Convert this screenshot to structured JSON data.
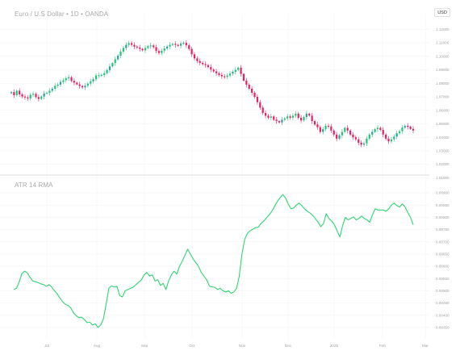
{
  "header": {
    "title": "Euro / U.S Dollar • 1D • OANDA",
    "currency": "USD",
    "indicator_label": "ATR 14 RMA"
  },
  "colors": {
    "up": "#26a69a",
    "up_bright": "#22c47a",
    "down": "#e91e63",
    "atr_line": "#2ed573",
    "grid": "#f0f0f0",
    "separator": "#dcdcdc"
  },
  "chart_data": [
    {
      "type": "candlestick",
      "title": "Euro / U.S Dollar • 1D • OANDA",
      "ylabel": "",
      "y_ticks": [
        "1.12000",
        "1.11000",
        "1.10000",
        "1.09000",
        "1.08000",
        "1.07000",
        "1.06000",
        "1.05000",
        "1.04000",
        "1.03000",
        "1.02000",
        "1.01000"
      ],
      "ylim": [
        1.015,
        1.125
      ],
      "x_ticks": [
        "Jul",
        "Aug",
        "Sep",
        "Oct",
        "Nov",
        "Dec",
        "2025",
        "Feb",
        "Mar"
      ],
      "closes": [
        1.0735,
        1.0712,
        1.0745,
        1.0718,
        1.0702,
        1.0695,
        1.0688,
        1.0715,
        1.0722,
        1.0698,
        1.0685,
        1.0702,
        1.0724,
        1.073,
        1.0745,
        1.076,
        1.0782,
        1.079,
        1.081,
        1.0822,
        1.0838,
        1.0845,
        1.0818,
        1.0805,
        1.0792,
        1.078,
        1.077,
        1.0782,
        1.0798,
        1.0815,
        1.083,
        1.0858,
        1.086,
        1.0862,
        1.0875,
        1.0898,
        1.0925,
        1.095,
        1.0978,
        1.1005,
        1.1035,
        1.1062,
        1.1085,
        1.1098,
        1.1085,
        1.1072,
        1.1065,
        1.1055,
        1.1045,
        1.1062,
        1.1075,
        1.108,
        1.1068,
        1.104,
        1.1025,
        1.1042,
        1.1058,
        1.1072,
        1.1085,
        1.1092,
        1.1085,
        1.1078,
        1.1095,
        1.11,
        1.1082,
        1.1055,
        1.1015,
        1.0985,
        1.0965,
        1.0952,
        1.0942,
        1.0935,
        1.092,
        1.0902,
        1.0888,
        1.0875,
        1.0862,
        1.0852,
        1.0848,
        1.0858,
        1.0872,
        1.0885,
        1.09,
        1.0915,
        1.087,
        1.082,
        1.079,
        1.076,
        1.073,
        1.07,
        1.066,
        1.062,
        1.058,
        1.056,
        1.0545,
        1.0555,
        1.053,
        1.052,
        1.051,
        1.053,
        1.054,
        1.0555,
        1.0545,
        1.056,
        1.0575,
        1.0545,
        1.0525,
        1.055,
        1.0575,
        1.056,
        1.052,
        1.0495,
        1.0475,
        1.044,
        1.046,
        1.0485,
        1.048,
        1.045,
        1.042,
        1.039,
        1.0415,
        1.044,
        1.047,
        1.045,
        1.042,
        1.04,
        1.0385,
        1.036,
        1.0345,
        1.0355,
        1.039,
        1.042,
        1.044,
        1.046,
        1.047,
        1.0455,
        1.042,
        1.039,
        1.037,
        1.0385,
        1.0405,
        1.043,
        1.0445,
        1.0472,
        1.0485,
        1.0478,
        1.0462,
        1.045
      ],
      "series": [
        {
          "name": "Euro / U.S Dollar",
          "kind": "candles"
        }
      ]
    },
    {
      "type": "line",
      "title": "ATR 14 RMA",
      "ylabel": "",
      "y_ticks": [
        "0.00900",
        "0.00850",
        "0.00800",
        "0.00750",
        "0.00700",
        "0.00650",
        "0.00600",
        "0.00550",
        "0.00500",
        "0.00450",
        "0.00400",
        "0.00350"
      ],
      "ylim": [
        0.0033,
        0.0092
      ],
      "x_ticks": [
        "Jul",
        "Aug",
        "Sep",
        "Oct",
        "Nov",
        "Dec",
        "2025",
        "Feb",
        "Mar"
      ],
      "series": [
        {
          "name": "ATR 14 RMA",
          "values": [
            0.00505,
            0.0051,
            0.00535,
            0.0057,
            0.0058,
            0.00573,
            0.00555,
            0.0054,
            0.00537,
            0.00533,
            0.00528,
            0.00525,
            0.00518,
            0.00525,
            0.00515,
            0.005,
            0.00488,
            0.0047,
            0.00455,
            0.00445,
            0.0044,
            0.0043,
            0.0041,
            0.00398,
            0.0039,
            0.00392,
            0.00382,
            0.0037,
            0.00372,
            0.0036,
            0.00365,
            0.0035,
            0.0036,
            0.00385,
            0.00445,
            0.0051,
            0.0052,
            0.00515,
            0.00518,
            0.0048,
            0.00475,
            0.005,
            0.00505,
            0.0051,
            0.00515,
            0.00525,
            0.00535,
            0.00545,
            0.00565,
            0.00575,
            0.0056,
            0.00565,
            0.0054,
            0.00545,
            0.00522,
            0.0053,
            0.00505,
            0.0054,
            0.00565,
            0.0058,
            0.00568,
            0.006,
            0.0062,
            0.00645,
            0.0067,
            0.0065,
            0.0063,
            0.00615,
            0.006,
            0.00575,
            0.0056,
            0.00545,
            0.0052,
            0.00515,
            0.00515,
            0.00505,
            0.0051,
            0.005,
            0.00495,
            0.005,
            0.0049,
            0.00495,
            0.0051,
            0.0056,
            0.0065,
            0.0071,
            0.00735,
            0.00745,
            0.00752,
            0.00758,
            0.0076,
            0.00775,
            0.00785,
            0.00798,
            0.0081,
            0.00825,
            0.00845,
            0.00865,
            0.0088,
            0.00893,
            0.0088,
            0.00855,
            0.00835,
            0.00838,
            0.0085,
            0.00858,
            0.00848,
            0.00835,
            0.00825,
            0.00818,
            0.00808,
            0.00795,
            0.0078,
            0.00762,
            0.00775,
            0.00815,
            0.00795,
            0.00785,
            0.0077,
            0.00745,
            0.0072,
            0.00765,
            0.008,
            0.0079,
            0.00795,
            0.00802,
            0.0079,
            0.00795,
            0.00805,
            0.00795,
            0.0079,
            0.0078,
            0.0081,
            0.00835,
            0.0083,
            0.0083,
            0.0083,
            0.00825,
            0.00835,
            0.0085,
            0.00858,
            0.00848,
            0.00842,
            0.00855,
            0.00843,
            0.0082,
            0.008,
            0.0077
          ]
        }
      ]
    }
  ]
}
